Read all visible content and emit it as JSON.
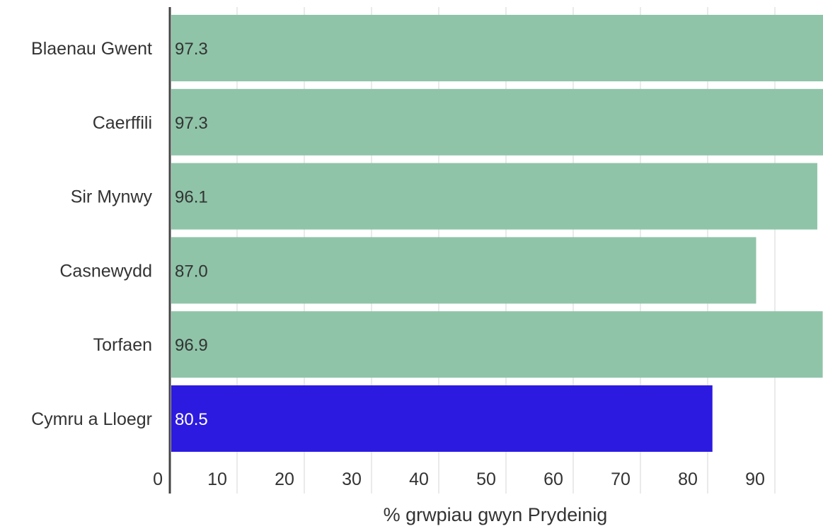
{
  "chart_data": {
    "type": "bar",
    "orientation": "horizontal",
    "title": "",
    "xlabel": "% grwpiau gwyn Prydeinig",
    "ylabel": "",
    "categories": [
      "Blaenau Gwent",
      "Caerffili",
      "Sir Mynwy",
      "Casnewydd",
      "Torfaen",
      "Cymru a Lloegr"
    ],
    "values": [
      97.3,
      97.3,
      96.1,
      87.0,
      96.9,
      80.5
    ],
    "value_labels": [
      "97.3",
      "97.3",
      "96.1",
      "87.0",
      "96.9",
      "80.5"
    ],
    "xlim": [
      0,
      100
    ],
    "ticks": [
      0,
      10,
      20,
      30,
      40,
      50,
      60,
      70,
      80,
      90
    ],
    "tick_labels": [
      "0",
      "10",
      "20",
      "30",
      "40",
      "50",
      "60",
      "70",
      "80",
      "90"
    ],
    "grid": true,
    "bar_colors": [
      "#8fc4a8",
      "#8fc4a8",
      "#8fc4a8",
      "#8fc4a8",
      "#8fc4a8",
      "#2d1ae0"
    ],
    "value_label_colors": [
      "#333333",
      "#333333",
      "#333333",
      "#333333",
      "#333333",
      "#ffffff"
    ]
  }
}
